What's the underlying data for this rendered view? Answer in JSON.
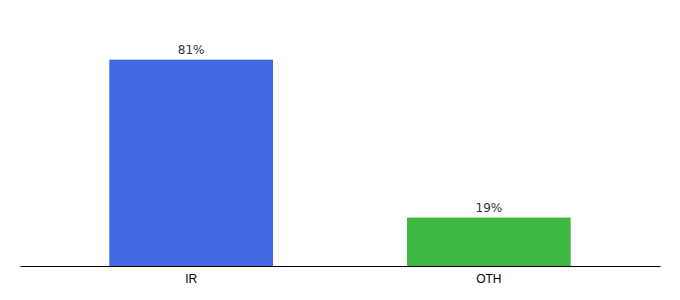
{
  "chart_data": {
    "type": "bar",
    "categories": [
      "IR",
      "OTH"
    ],
    "values": [
      81,
      19
    ],
    "colors": [
      "#4169E1",
      "#3CB843"
    ],
    "value_labels": [
      "81%",
      "19%"
    ],
    "data_labels": true,
    "ylim": [
      0,
      95
    ],
    "tick_labels": "x"
  }
}
